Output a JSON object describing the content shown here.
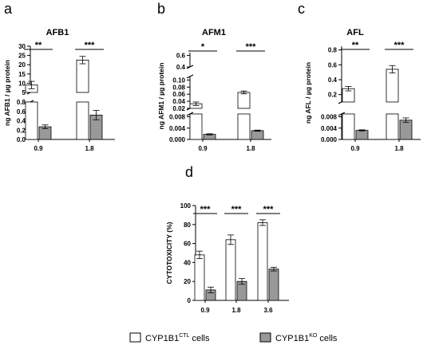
{
  "legend": {
    "ctl": {
      "base": "CYP1B1",
      "sup": "CTL",
      "suffix": " cells",
      "color": "#ffffff"
    },
    "ko": {
      "base": "CYP1B1",
      "sup": "KO",
      "suffix": " cells",
      "color": "#999999"
    }
  },
  "chart_data": [
    {
      "type": "bar",
      "panel_letter": "a",
      "title": "AFB1",
      "ylabel": "ng AFB1 / µg protein",
      "categories": [
        "0.9",
        "1.8"
      ],
      "series": [
        {
          "key": "ctl",
          "values": [
            9,
            22.5
          ],
          "errors": [
            2,
            2
          ]
        },
        {
          "key": "ko",
          "values": [
            0.27,
            0.52
          ],
          "errors": [
            0.04,
            0.1
          ]
        }
      ],
      "broken_axis": true,
      "segments": {
        "upper": {
          "ylim": [
            5,
            30
          ],
          "ticks": [
            "5",
            "10",
            "15",
            "20",
            "25",
            "30"
          ]
        },
        "lower": {
          "ylim": [
            0,
            0.8
          ],
          "ticks": [
            "0.0",
            "0.2",
            "0.4",
            "0.6",
            "0.8"
          ]
        }
      },
      "significance": [
        "**",
        "***"
      ]
    },
    {
      "type": "bar",
      "panel_letter": "b",
      "title": "AFM1",
      "ylabel": "ng AFM1 / µg protein",
      "categories": [
        "0.9",
        "1.8"
      ],
      "series": [
        {
          "key": "ctl",
          "values": [
            0.033,
            0.065
          ],
          "errors": [
            0.005,
            0.004
          ]
        },
        {
          "key": "ko",
          "values": [
            0.0018,
            0.0031
          ],
          "errors": [
            0.0002,
            0.0002
          ]
        }
      ],
      "broken_axis": true,
      "segments": {
        "top": {
          "ylim": [
            0.4,
            0.65
          ],
          "ticks": [
            "0.4",
            "0.6"
          ]
        },
        "middle": {
          "ylim": [
            0.02,
            0.11
          ],
          "ticks": [
            "0.02",
            "0.04",
            "0.06",
            "0.08",
            "0.10"
          ]
        },
        "lower": {
          "ylim": [
            0,
            0.009
          ],
          "ticks": [
            "0.000",
            "0.004",
            "0.008"
          ]
        }
      },
      "significance": [
        "*",
        "***"
      ]
    },
    {
      "type": "bar",
      "panel_letter": "c",
      "title": "AFL",
      "ylabel": "ng AFL / µg protein",
      "categories": [
        "0.9",
        "1.8"
      ],
      "series": [
        {
          "key": "ctl",
          "values": [
            0.28,
            0.54
          ],
          "errors": [
            0.03,
            0.05
          ]
        },
        {
          "key": "ko",
          "values": [
            0.0032,
            0.0068
          ],
          "errors": [
            0.0002,
            0.0008
          ]
        }
      ],
      "broken_axis": true,
      "segments": {
        "upper": {
          "ylim": [
            0.1,
            0.85
          ],
          "ticks": [
            "0.2",
            "0.4",
            "0.6",
            "0.8"
          ]
        },
        "lower": {
          "ylim": [
            0,
            0.009
          ],
          "ticks": [
            "0.000",
            "0.004",
            "0.008"
          ]
        }
      },
      "significance": [
        "**",
        "***"
      ]
    },
    {
      "type": "bar",
      "panel_letter": "d",
      "title": "",
      "ylabel": "CYTOTOXICITY (%)",
      "categories": [
        "0.9",
        "1.8",
        "3.6"
      ],
      "series": [
        {
          "key": "ctl",
          "values": [
            48,
            64,
            82
          ],
          "errors": [
            4,
            5,
            3
          ]
        },
        {
          "key": "ko",
          "values": [
            11,
            20,
            33
          ],
          "errors": [
            3,
            3,
            2
          ]
        }
      ],
      "ylim": [
        0,
        100
      ],
      "ticks": [
        "0",
        "20",
        "40",
        "60",
        "80",
        "100"
      ],
      "significance": [
        "***",
        "***",
        "***"
      ]
    }
  ]
}
